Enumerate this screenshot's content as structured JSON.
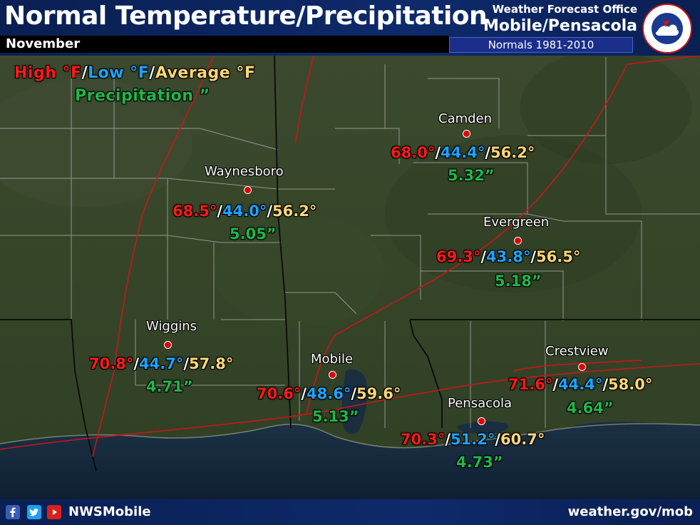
{
  "header": {
    "title": "Normal Temperature/Precipitation",
    "month": "November",
    "office_line1": "Weather Forecast Office",
    "office_line2": "Mobile/Pensacola",
    "normals_period": "Normals 1981-2010",
    "seal_icon": "nws-seal-icon"
  },
  "legend": {
    "high": "High °F",
    "low": "Low °F",
    "average": "Average °F",
    "separator": "/",
    "precip": "Precipitation ”"
  },
  "colors": {
    "high": "#ff1a1a",
    "low": "#1fa3ff",
    "average": "#ffd778",
    "precip": "#1fb84a",
    "city_dot": "#e00000",
    "banner": "#0e2a6b"
  },
  "stations": [
    {
      "name": "Camden",
      "high": "68.0°",
      "low": "44.4°",
      "avg": "56.2°",
      "precip": "5.32”"
    },
    {
      "name": "Waynesboro",
      "high": "68.5°",
      "low": "44.0°",
      "avg": "56.2°",
      "precip": "5.05”"
    },
    {
      "name": "Evergreen",
      "high": "69.3°",
      "low": "43.8°",
      "avg": "56.5°",
      "precip": "5.18”"
    },
    {
      "name": "Wiggins",
      "high": "70.8°",
      "low": "44.7°",
      "avg": "57.8°",
      "precip": "4.71”"
    },
    {
      "name": "Mobile",
      "high": "70.6°",
      "low": "48.6°",
      "avg": "59.6°",
      "precip": "5.13”"
    },
    {
      "name": "Pensacola",
      "high": "70.3°",
      "low": "51.2°",
      "avg": "60.7°",
      "precip": "4.73”"
    },
    {
      "name": "Crestview",
      "high": "71.6°",
      "low": "44.4°",
      "avg": "58.0°",
      "precip": "4.64”"
    }
  ],
  "footer": {
    "social_icons": [
      "facebook-icon",
      "twitter-icon",
      "youtube-icon"
    ],
    "handle": "NWSMobile",
    "website": "weather.gov/mob"
  }
}
